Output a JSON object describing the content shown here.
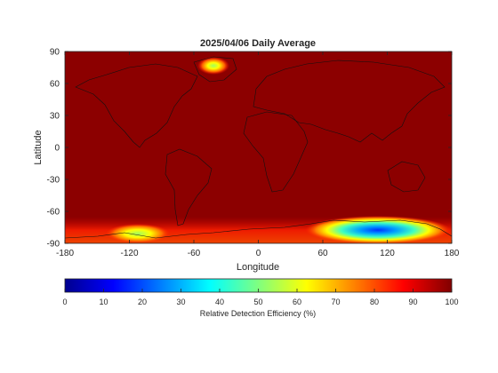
{
  "chart_data": {
    "type": "heatmap",
    "title": "2025/04/06 Daily Average",
    "xlabel": "Longitude",
    "ylabel": "Latitude",
    "xlim": [
      -180,
      180
    ],
    "ylim": [
      -90,
      90
    ],
    "x_ticks": [
      -180,
      -120,
      -60,
      0,
      60,
      120,
      180
    ],
    "y_ticks": [
      90,
      60,
      30,
      0,
      -30,
      -60,
      -90
    ],
    "colorbar": {
      "label": "Relative Detection Efficiency (%)",
      "range": [
        0,
        100
      ],
      "ticks": [
        0,
        10,
        20,
        30,
        40,
        50,
        60,
        70,
        80,
        90,
        100
      ],
      "colormap": "jet"
    },
    "background_value": 100,
    "features": [
      {
        "region": "Greenland",
        "lon": -40,
        "lat": 75,
        "min_value": 60
      },
      {
        "region": "West Antarctica",
        "lon": -110,
        "lat": -80,
        "min_value": 60
      },
      {
        "region": "East Antarctica",
        "lon": 110,
        "lat": -78,
        "min_value": 20
      },
      {
        "region": "Antarctic margin",
        "lon_range": [
          -180,
          180
        ],
        "lat_range": [
          -90,
          -65
        ],
        "min_value": 75
      }
    ]
  }
}
